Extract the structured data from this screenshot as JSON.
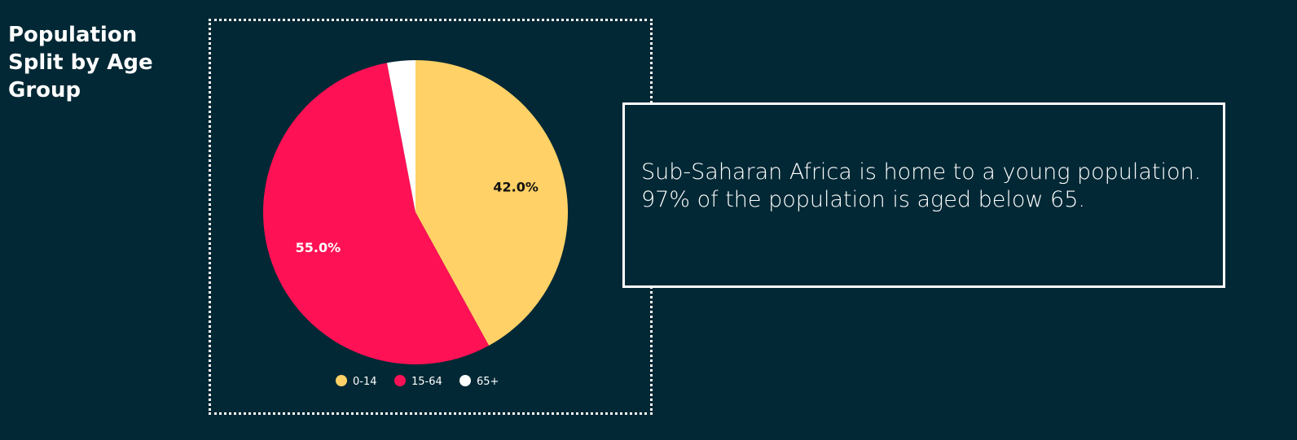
{
  "page": {
    "title": "Population Split by Age Group",
    "background_color": "#022835"
  },
  "info_box": {
    "text": "Sub-Saharan Africa is home to a young population. 97% of the population is aged below 65."
  },
  "chart_data": {
    "type": "pie",
    "title": "",
    "categories": [
      "0-14",
      "15-64",
      "65+"
    ],
    "values": [
      42.0,
      55.0,
      3.0
    ],
    "data_labels": [
      "42.0%",
      "55.0%",
      ""
    ],
    "colors": [
      "#FFD166",
      "#FF1155",
      "#FFFFFF"
    ],
    "label_colors": [
      "#111111",
      "#FFFFFF",
      "#111111"
    ],
    "legend": {
      "position": "bottom",
      "entries": [
        "0-14",
        "15-64",
        "65+"
      ]
    },
    "start_angle": "12 o'clock",
    "direction": "clockwise"
  }
}
